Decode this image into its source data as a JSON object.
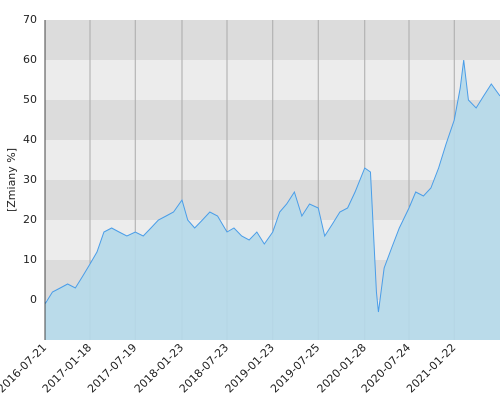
{
  "chart_data": {
    "type": "area",
    "y_label": "[Zmiany %]",
    "x": [
      "2016-07-21",
      "2016-08-20",
      "2016-09-20",
      "2016-10-20",
      "2016-11-20",
      "2016-12-20",
      "2017-01-18",
      "2017-02-15",
      "2017-03-15",
      "2017-04-15",
      "2017-05-15",
      "2017-06-15",
      "2017-07-19",
      "2017-08-20",
      "2017-09-20",
      "2017-10-20",
      "2017-11-20",
      "2017-12-20",
      "2018-01-23",
      "2018-02-15",
      "2018-03-15",
      "2018-04-15",
      "2018-05-15",
      "2018-06-15",
      "2018-07-23",
      "2018-08-20",
      "2018-09-20",
      "2018-10-20",
      "2018-11-20",
      "2018-12-20",
      "2019-01-23",
      "2019-02-20",
      "2019-03-20",
      "2019-04-20",
      "2019-05-20",
      "2019-06-20",
      "2019-07-25",
      "2019-08-20",
      "2019-09-20",
      "2019-10-20",
      "2019-11-20",
      "2019-12-20",
      "2020-01-28",
      "2020-02-20",
      "2020-03-15",
      "2020-03-23",
      "2020-04-15",
      "2020-05-15",
      "2020-06-15",
      "2020-07-24",
      "2020-08-20",
      "2020-09-20",
      "2020-10-20",
      "2020-11-20",
      "2020-12-20",
      "2021-01-22",
      "2021-02-15",
      "2021-03-01",
      "2021-03-20",
      "2021-04-20",
      "2021-05-20",
      "2021-06-20",
      "2021-07-25"
    ],
    "series": [
      {
        "name": "Zmiany",
        "color": "#4a9de8",
        "fill": "#b5d9ea",
        "values": [
          -1,
          2,
          3,
          4,
          3,
          6,
          9,
          12,
          17,
          18,
          17,
          16,
          17,
          16,
          18,
          20,
          21,
          22,
          25,
          20,
          18,
          20,
          22,
          21,
          17,
          18,
          16,
          15,
          17,
          14,
          17,
          22,
          24,
          27,
          21,
          24,
          23,
          16,
          19,
          22,
          23,
          27,
          33,
          32,
          2,
          -3,
          8,
          13,
          18,
          23,
          27,
          26,
          28,
          33,
          39,
          45,
          53,
          60,
          50,
          48,
          51,
          54,
          51
        ]
      }
    ],
    "xlim": [
      "2016-07-21",
      "2021-07-25"
    ],
    "xticks": [
      "2016-07-21",
      "2017-01-18",
      "2017-07-19",
      "2018-01-23",
      "2018-07-23",
      "2019-01-23",
      "2019-07-25",
      "2020-01-28",
      "2020-07-24",
      "2021-01-22"
    ],
    "ylim": [
      -10,
      70
    ],
    "yticks": [
      0,
      10,
      20,
      30,
      40,
      50,
      60,
      70
    ],
    "band_colors": [
      "#ececec",
      "#dcdcdc"
    ]
  }
}
